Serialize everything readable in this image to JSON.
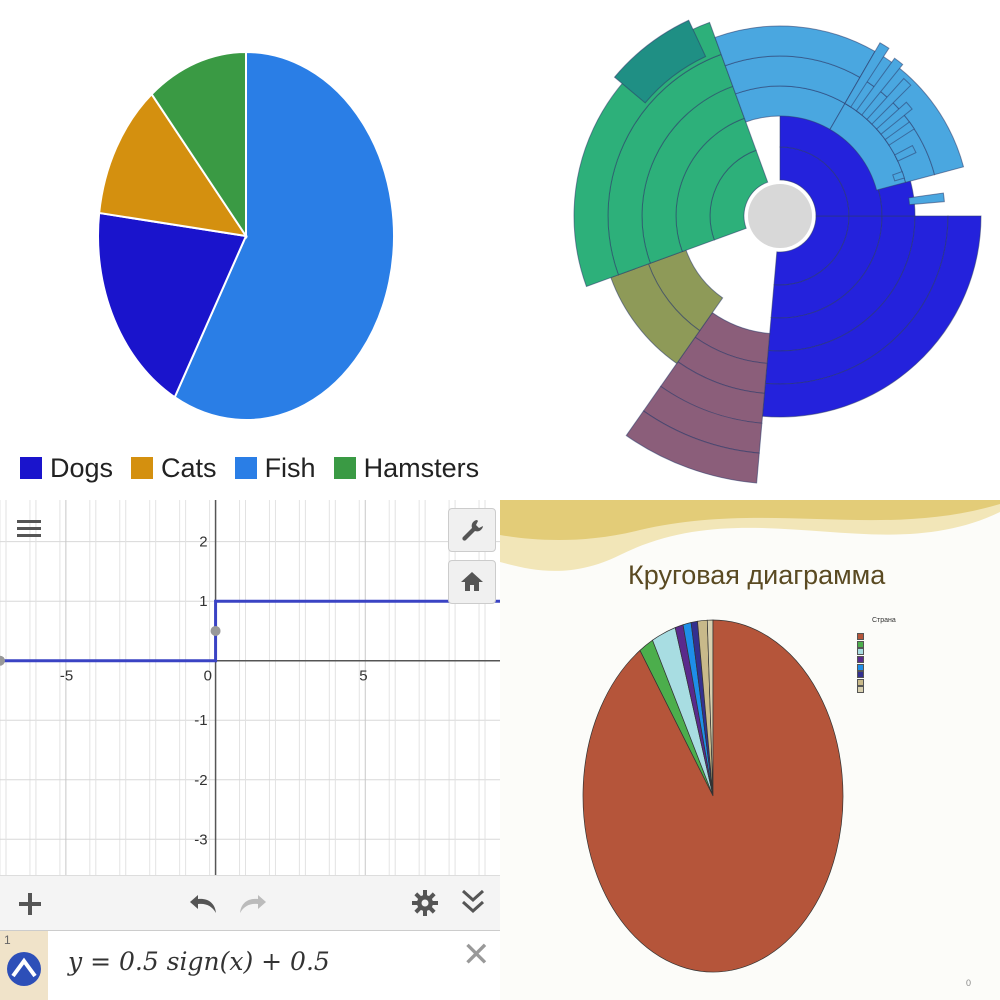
{
  "chart_data": [
    {
      "type": "pie",
      "title": "",
      "categories": [
        "Dogs",
        "Cats",
        "Fish",
        "Hamsters"
      ],
      "values": [
        19,
        12,
        58,
        11
      ],
      "colors": [
        "#1a14cc",
        "#d4900f",
        "#2a7ee6",
        "#3a9a44"
      ],
      "legend_position": "bottom",
      "legend": [
        "Dogs",
        "Cats",
        "Fish",
        "Hamsters"
      ]
    },
    {
      "type": "sunburst",
      "title": "",
      "rings": 5,
      "segments": [
        {
          "color": "#2422dc",
          "share": 0.52
        },
        {
          "color": "#2db07a",
          "share": 0.2
        },
        {
          "color": "#8b5e7a",
          "share": 0.13
        },
        {
          "color": "#4aa7e0",
          "share": 0.1
        },
        {
          "color": "#8e9a58",
          "share": 0.05
        }
      ]
    },
    {
      "type": "line",
      "title": "",
      "xlim": [
        -7.2,
        9.5
      ],
      "ylim": [
        -3.6,
        2.7
      ],
      "x_ticks": [
        "-5",
        "0",
        "5"
      ],
      "y_ticks": [
        "2",
        "1",
        "-1",
        "-2",
        "-3"
      ],
      "series": [
        {
          "x": [
            -7.2,
            0,
            0,
            9.5
          ],
          "y": [
            0,
            0,
            1,
            1
          ],
          "color": "#3a43c4"
        }
      ],
      "points": [
        {
          "x": 0,
          "y": 0.5
        },
        {
          "x": -7.2,
          "y": 0
        }
      ],
      "grid": true
    },
    {
      "type": "pie",
      "title": "Круговая диаграмма",
      "legend_title": "Страна",
      "legend_position": "right",
      "categories": [
        "",
        "",
        "",
        "",
        "",
        "",
        "",
        ""
      ],
      "values": [
        90.5,
        1.8,
        3.0,
        1.0,
        1.0,
        0.8,
        1.2,
        0.7
      ],
      "colors": [
        "#b5553a",
        "#4cae4c",
        "#a8dde2",
        "#5a2a8c",
        "#1e8ee8",
        "#33308f",
        "#c8b98a",
        "#d8d0b0"
      ]
    }
  ],
  "pie1": {
    "legend": [
      {
        "label": "Dogs",
        "color": "#1a14cc"
      },
      {
        "label": "Cats",
        "color": "#d4900f"
      },
      {
        "label": "Fish",
        "color": "#2a7ee6"
      },
      {
        "label": "Hamsters",
        "color": "#3a9a44"
      }
    ]
  },
  "calculator": {
    "expression": "y = 0.5 sign(x) + 0.5",
    "expression_index": "1",
    "toolbar": {
      "add_icon": "plus-icon",
      "undo_icon": "undo-icon",
      "redo_icon": "redo-icon",
      "settings_icon": "gear-icon",
      "collapse_icon": "double-chevron-down-icon"
    },
    "tools": {
      "wrench_icon": "wrench-icon",
      "home_icon": "home-icon",
      "menu_icon": "hamburger-menu-icon"
    }
  },
  "slide": {
    "title": "Круговая диаграмма",
    "legend_title": "Страна",
    "page_number": "0"
  }
}
